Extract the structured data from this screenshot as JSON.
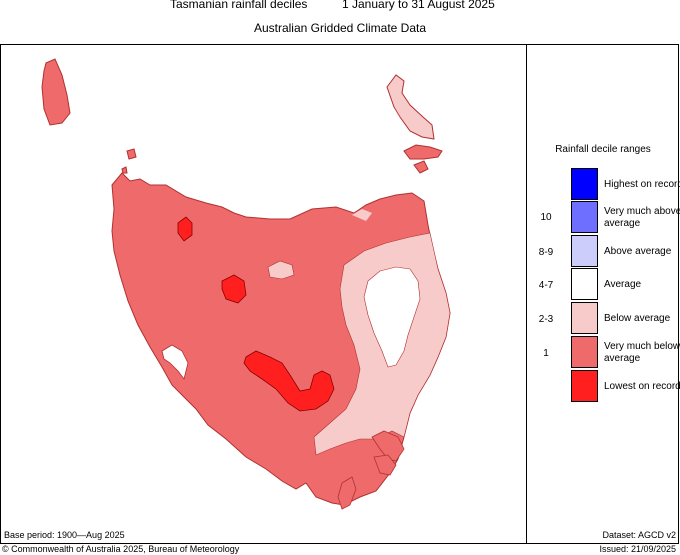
{
  "title": "Tasmanian rainfall deciles",
  "period": "1 January to 31 August 2025",
  "subtitle": "Australian Gridded Climate Data",
  "legend": {
    "title": "Rainfall decile ranges",
    "categories": [
      {
        "label": "Highest on record",
        "range": "",
        "color": "#0000ff"
      },
      {
        "label": "Very much above average",
        "range": "10",
        "color": "#6e6eff"
      },
      {
        "label": "Above average",
        "range": "8-9",
        "color": "#cccdfb"
      },
      {
        "label": "Average",
        "range": "4-7",
        "color": "#ffffff"
      },
      {
        "label": "Below average",
        "range": "2-3",
        "color": "#f8cbcb"
      },
      {
        "label": "Very much below average",
        "range": "1",
        "color": "#ef6b6b"
      },
      {
        "label": "Lowest on record",
        "range": "",
        "color": "#ff1f1f"
      }
    ]
  },
  "footer": {
    "base_period": "Base period: 1900—Aug 2025",
    "dataset": "Dataset: AGCD v2",
    "copyright": "© Commonwealth of Australia 2025, Bureau of Meteorology",
    "issued": "Issued: 21/09/2025"
  },
  "colors": {
    "very_much_below": "#ef6b6b",
    "below": "#f8cbcb",
    "lowest": "#ff1f1f",
    "average": "#ffffff",
    "outline": "#b03030"
  }
}
